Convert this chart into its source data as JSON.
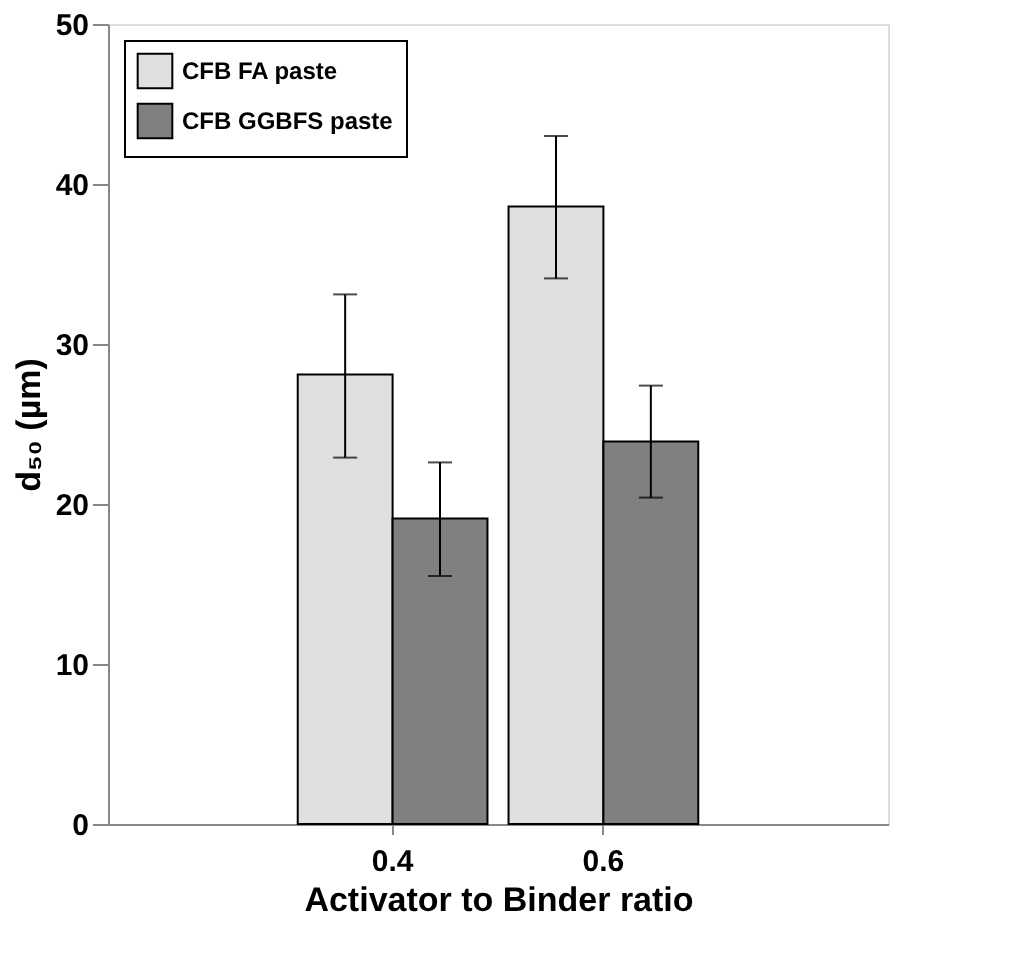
{
  "chart_data": {
    "type": "bar",
    "xlabel": "Activator to Binder ratio",
    "ylabel": "d₅₀ (µm)",
    "categories": [
      "0.4",
      "0.6"
    ],
    "series": [
      {
        "name": "CFB FA paste",
        "color": "#e0e0e0",
        "values": [
          28.1,
          38.6
        ],
        "errors": [
          [
            22.9,
            33.1
          ],
          [
            34.1,
            43.0
          ]
        ]
      },
      {
        "name": "CFB GGBFS paste",
        "color": "#808080",
        "values": [
          19.1,
          23.9
        ],
        "errors": [
          [
            15.5,
            22.6
          ],
          [
            20.4,
            27.4
          ]
        ]
      }
    ],
    "ylim": [
      0,
      50
    ],
    "yticks": [
      0,
      10,
      20,
      30,
      40,
      50
    ],
    "grid": false,
    "legend": "top left"
  }
}
